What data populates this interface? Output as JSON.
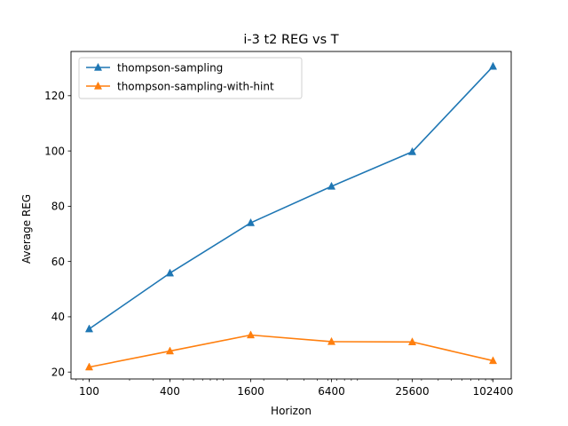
{
  "chart_data": {
    "type": "line",
    "title": "i-3 t2 REG vs T",
    "xlabel": "Horizon",
    "ylabel": "Average REG",
    "x_scale": "log",
    "x": [
      100,
      400,
      1600,
      6400,
      25600,
      102400
    ],
    "x_tick_labels": [
      "100",
      "400",
      "1600",
      "6400",
      "25600",
      "102400"
    ],
    "y_ticks": [
      20,
      40,
      60,
      80,
      100,
      120
    ],
    "ylim": [
      17.5,
      136
    ],
    "grid": false,
    "legend_position": "top-left",
    "series": [
      {
        "name": "thompson-sampling",
        "color": "#1f77b4",
        "marker": "triangle-up",
        "values": [
          35.6,
          55.8,
          74.0,
          87.2,
          99.7,
          130.6
        ]
      },
      {
        "name": "thompson-sampling-with-hint",
        "color": "#ff7f0e",
        "marker": "triangle-up",
        "values": [
          21.8,
          27.6,
          33.4,
          31.0,
          30.9,
          24.1
        ]
      }
    ]
  }
}
